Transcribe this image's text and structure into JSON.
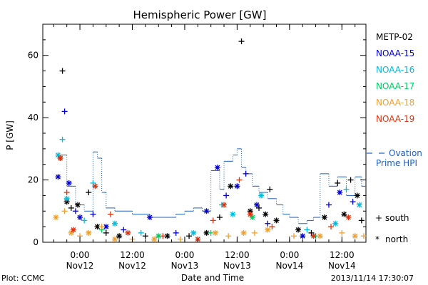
{
  "chart_data": {
    "type": "scatter",
    "title": "Hemispheric Power [GW]",
    "ylabel": "P [GW]",
    "xlabel": "Date and Time",
    "ylim": [
      0,
      70
    ],
    "xlim": [
      "2013-11-11 15:30",
      "2013-11-14 17:30"
    ],
    "y_ticks": [
      0,
      20,
      40,
      60
    ],
    "x_ticks": [
      {
        "time": "2013-11-12 00:00",
        "label1": "0:00",
        "label2": "Nov12"
      },
      {
        "time": "2013-11-12 12:00",
        "label1": "12:00",
        "label2": "Nov12"
      },
      {
        "time": "2013-11-13 00:00",
        "label1": "0:00",
        "label2": "Nov13"
      },
      {
        "time": "2013-11-13 12:00",
        "label1": "12:00",
        "label2": "Nov13"
      },
      {
        "time": "2013-11-14 00:00",
        "label1": "0:00",
        "label2": "Nov14"
      },
      {
        "time": "2013-11-14 12:00",
        "label1": "12:00",
        "label2": "Nov14"
      }
    ],
    "grid": false,
    "legend_position": "right",
    "markers": {
      "south": "+",
      "north": "*"
    },
    "marker_legend": [
      {
        "label": "south",
        "symbol": "+"
      },
      {
        "label": "north",
        "symbol": "*"
      }
    ],
    "series": [
      {
        "name": "METP-02",
        "color": "#000000",
        "points": [
          {
            "x": "2013-11-11 19:30",
            "y": 27,
            "hemi": "north"
          },
          {
            "x": "2013-11-11 20:00",
            "y": 55,
            "hemi": "south"
          },
          {
            "x": "2013-11-11 21:00",
            "y": 13,
            "hemi": "north"
          },
          {
            "x": "2013-11-11 22:00",
            "y": 11,
            "hemi": "south"
          },
          {
            "x": "2013-11-11 23:30",
            "y": 12,
            "hemi": "north"
          },
          {
            "x": "2013-11-12 02:00",
            "y": 16,
            "hemi": "south"
          },
          {
            "x": "2013-11-12 04:00",
            "y": 5,
            "hemi": "north"
          },
          {
            "x": "2013-11-12 06:00",
            "y": 3,
            "hemi": "south"
          },
          {
            "x": "2013-11-12 09:00",
            "y": 2,
            "hemi": "north"
          },
          {
            "x": "2013-11-12 15:00",
            "y": 2,
            "hemi": "south"
          },
          {
            "x": "2013-11-12 20:00",
            "y": 2,
            "hemi": "north"
          },
          {
            "x": "2013-11-13 01:00",
            "y": 2,
            "hemi": "south"
          },
          {
            "x": "2013-11-13 05:00",
            "y": 3,
            "hemi": "north"
          },
          {
            "x": "2013-11-13 08:00",
            "y": 8,
            "hemi": "south"
          },
          {
            "x": "2013-11-13 10:30",
            "y": 18,
            "hemi": "north"
          },
          {
            "x": "2013-11-13 13:00",
            "y": 64.5,
            "hemi": "south"
          },
          {
            "x": "2013-11-13 15:00",
            "y": 10,
            "hemi": "north"
          },
          {
            "x": "2013-11-13 17:00",
            "y": 11,
            "hemi": "south"
          },
          {
            "x": "2013-11-13 18:30",
            "y": 9,
            "hemi": "north"
          },
          {
            "x": "2013-11-13 19:30",
            "y": 17,
            "hemi": "south"
          },
          {
            "x": "2013-11-13 21:00",
            "y": 7,
            "hemi": "north"
          },
          {
            "x": "2013-11-14 02:00",
            "y": 4,
            "hemi": "north"
          },
          {
            "x": "2013-11-14 05:00",
            "y": 3,
            "hemi": "south"
          },
          {
            "x": "2013-11-14 08:00",
            "y": 8,
            "hemi": "north"
          },
          {
            "x": "2013-11-14 11:00",
            "y": 19,
            "hemi": "south"
          },
          {
            "x": "2013-11-14 12:30",
            "y": 9,
            "hemi": "north"
          },
          {
            "x": "2013-11-14 14:00",
            "y": 20,
            "hemi": "south"
          },
          {
            "x": "2013-11-14 15:30",
            "y": 15,
            "hemi": "north"
          },
          {
            "x": "2013-11-14 16:30",
            "y": 7,
            "hemi": "south"
          }
        ]
      },
      {
        "name": "NOAA-15",
        "color": "#0000cc",
        "points": [
          {
            "x": "2013-11-11 19:00",
            "y": 21,
            "hemi": "north"
          },
          {
            "x": "2013-11-11 20:30",
            "y": 42,
            "hemi": "south"
          },
          {
            "x": "2013-11-11 21:30",
            "y": 19,
            "hemi": "north"
          },
          {
            "x": "2013-11-11 23:00",
            "y": 10,
            "hemi": "south"
          },
          {
            "x": "2013-11-12 00:00",
            "y": 8,
            "hemi": "north"
          },
          {
            "x": "2013-11-12 03:00",
            "y": 9,
            "hemi": "south"
          },
          {
            "x": "2013-11-12 06:00",
            "y": 5,
            "hemi": "north"
          },
          {
            "x": "2013-11-12 10:00",
            "y": 4,
            "hemi": "south"
          },
          {
            "x": "2013-11-12 16:00",
            "y": 8,
            "hemi": "north"
          },
          {
            "x": "2013-11-12 22:00",
            "y": 3,
            "hemi": "south"
          },
          {
            "x": "2013-11-13 05:00",
            "y": 10,
            "hemi": "north"
          },
          {
            "x": "2013-11-13 07:30",
            "y": 24,
            "hemi": "north"
          },
          {
            "x": "2013-11-13 09:30",
            "y": 15,
            "hemi": "south"
          },
          {
            "x": "2013-11-13 12:00",
            "y": 18,
            "hemi": "north"
          },
          {
            "x": "2013-11-13 14:00",
            "y": 22,
            "hemi": "south"
          },
          {
            "x": "2013-11-13 16:30",
            "y": 12,
            "hemi": "north"
          },
          {
            "x": "2013-11-13 19:00",
            "y": 6,
            "hemi": "south"
          },
          {
            "x": "2013-11-14 03:00",
            "y": 2,
            "hemi": "north"
          },
          {
            "x": "2013-11-14 09:00",
            "y": 12,
            "hemi": "south"
          },
          {
            "x": "2013-11-14 11:30",
            "y": 16,
            "hemi": "north"
          },
          {
            "x": "2013-11-14 14:30",
            "y": 13,
            "hemi": "south"
          }
        ]
      },
      {
        "name": "NOAA-16",
        "color": "#00bbdd",
        "points": [
          {
            "x": "2013-11-11 19:00",
            "y": 28,
            "hemi": "north"
          },
          {
            "x": "2013-11-11 20:00",
            "y": 33,
            "hemi": "south"
          },
          {
            "x": "2013-11-11 21:00",
            "y": 14,
            "hemi": "north"
          },
          {
            "x": "2013-11-12 01:00",
            "y": 7,
            "hemi": "south"
          },
          {
            "x": "2013-11-12 03:00",
            "y": 19,
            "hemi": "south"
          },
          {
            "x": "2013-11-12 08:00",
            "y": 6,
            "hemi": "north"
          },
          {
            "x": "2013-11-12 14:00",
            "y": 3,
            "hemi": "south"
          },
          {
            "x": "2013-11-13 02:00",
            "y": 3,
            "hemi": "north"
          },
          {
            "x": "2013-11-13 08:30",
            "y": 12,
            "hemi": "south"
          },
          {
            "x": "2013-11-13 11:00",
            "y": 9,
            "hemi": "north"
          },
          {
            "x": "2013-11-13 17:30",
            "y": 15,
            "hemi": "north"
          },
          {
            "x": "2013-11-14 04:00",
            "y": 4,
            "hemi": "south"
          },
          {
            "x": "2013-11-14 10:30",
            "y": 6,
            "hemi": "north"
          },
          {
            "x": "2013-11-14 13:00",
            "y": 17,
            "hemi": "south"
          },
          {
            "x": "2013-11-14 16:00",
            "y": 12,
            "hemi": "north"
          }
        ]
      },
      {
        "name": "NOAA-17",
        "color": "#00cc66",
        "points": [
          {
            "x": "2013-11-12 05:00",
            "y": 4,
            "hemi": "south"
          },
          {
            "x": "2013-11-12 18:00",
            "y": 2,
            "hemi": "north"
          },
          {
            "x": "2013-11-13 06:00",
            "y": 3,
            "hemi": "south"
          },
          {
            "x": "2013-11-13 15:30",
            "y": 8,
            "hemi": "north"
          },
          {
            "x": "2013-11-14 06:00",
            "y": 2,
            "hemi": "south"
          }
        ]
      },
      {
        "name": "NOAA-18",
        "color": "#f0a030",
        "points": [
          {
            "x": "2013-11-11 18:30",
            "y": 8,
            "hemi": "north"
          },
          {
            "x": "2013-11-11 20:30",
            "y": 10,
            "hemi": "south"
          },
          {
            "x": "2013-11-11 22:00",
            "y": 3,
            "hemi": "north"
          },
          {
            "x": "2013-11-12 00:00",
            "y": 2,
            "hemi": "south"
          },
          {
            "x": "2013-11-12 02:00",
            "y": 3,
            "hemi": "north"
          },
          {
            "x": "2013-11-12 05:00",
            "y": 5,
            "hemi": "south"
          },
          {
            "x": "2013-11-12 08:00",
            "y": 1,
            "hemi": "north"
          },
          {
            "x": "2013-11-12 12:00",
            "y": 1,
            "hemi": "south"
          },
          {
            "x": "2013-11-12 17:00",
            "y": 1,
            "hemi": "north"
          },
          {
            "x": "2013-11-12 23:00",
            "y": 1,
            "hemi": "south"
          },
          {
            "x": "2013-11-13 07:00",
            "y": 3,
            "hemi": "north"
          },
          {
            "x": "2013-11-13 10:00",
            "y": 2,
            "hemi": "south"
          },
          {
            "x": "2013-11-13 13:30",
            "y": 3,
            "hemi": "north"
          },
          {
            "x": "2013-11-13 16:00",
            "y": 3,
            "hemi": "south"
          },
          {
            "x": "2013-11-13 19:00",
            "y": 4,
            "hemi": "north"
          },
          {
            "x": "2013-11-14 01:00",
            "y": 2,
            "hemi": "south"
          },
          {
            "x": "2013-11-14 07:00",
            "y": 2,
            "hemi": "north"
          },
          {
            "x": "2013-11-14 12:00",
            "y": 3,
            "hemi": "south"
          },
          {
            "x": "2013-11-14 15:00",
            "y": 2,
            "hemi": "north"
          },
          {
            "x": "2013-11-14 17:00",
            "y": 2,
            "hemi": "south"
          }
        ]
      },
      {
        "name": "NOAA-19",
        "color": "#dd3311",
        "points": [
          {
            "x": "2013-11-11 19:30",
            "y": 27,
            "hemi": "north"
          },
          {
            "x": "2013-11-11 21:00",
            "y": 16,
            "hemi": "south"
          },
          {
            "x": "2013-11-11 22:30",
            "y": 4,
            "hemi": "north"
          },
          {
            "x": "2013-11-12 03:30",
            "y": 18,
            "hemi": "north"
          },
          {
            "x": "2013-11-12 07:00",
            "y": 9,
            "hemi": "south"
          },
          {
            "x": "2013-11-12 11:00",
            "y": 3,
            "hemi": "north"
          },
          {
            "x": "2013-11-12 19:00",
            "y": 2,
            "hemi": "south"
          },
          {
            "x": "2013-11-13 03:00",
            "y": 1,
            "hemi": "north"
          },
          {
            "x": "2013-11-13 06:30",
            "y": 7,
            "hemi": "south"
          },
          {
            "x": "2013-11-13 09:00",
            "y": 12,
            "hemi": "north"
          },
          {
            "x": "2013-11-13 12:30",
            "y": 20,
            "hemi": "south"
          },
          {
            "x": "2013-11-13 15:00",
            "y": 9,
            "hemi": "north"
          },
          {
            "x": "2013-11-13 20:00",
            "y": 5,
            "hemi": "south"
          },
          {
            "x": "2013-11-14 05:30",
            "y": 2,
            "hemi": "north"
          },
          {
            "x": "2013-11-14 09:30",
            "y": 5,
            "hemi": "south"
          },
          {
            "x": "2013-11-14 13:30",
            "y": 8,
            "hemi": "north"
          }
        ]
      }
    ],
    "ovation": {
      "label_line1": "Ovation",
      "label_line2": "Prime HPI",
      "color": "#1f5fbf",
      "steps": [
        {
          "x": "2013-11-11 19:00",
          "y": 28
        },
        {
          "x": "2013-11-11 21:00",
          "y": 18
        },
        {
          "x": "2013-11-11 23:00",
          "y": 12
        },
        {
          "x": "2013-11-12 01:00",
          "y": 10
        },
        {
          "x": "2013-11-12 03:00",
          "y": 29
        },
        {
          "x": "2013-11-12 04:00",
          "y": 27
        },
        {
          "x": "2013-11-12 05:00",
          "y": 16
        },
        {
          "x": "2013-11-12 06:00",
          "y": 11
        },
        {
          "x": "2013-11-12 08:00",
          "y": 10
        },
        {
          "x": "2013-11-12 12:00",
          "y": 9
        },
        {
          "x": "2013-11-12 16:00",
          "y": 8
        },
        {
          "x": "2013-11-12 20:00",
          "y": 8
        },
        {
          "x": "2013-11-12 22:00",
          "y": 9
        },
        {
          "x": "2013-11-13 00:00",
          "y": 10
        },
        {
          "x": "2013-11-13 02:00",
          "y": 11
        },
        {
          "x": "2013-11-13 04:00",
          "y": 10
        },
        {
          "x": "2013-11-13 06:00",
          "y": 23
        },
        {
          "x": "2013-11-13 08:00",
          "y": 17
        },
        {
          "x": "2013-11-13 09:00",
          "y": 26
        },
        {
          "x": "2013-11-13 11:00",
          "y": 28
        },
        {
          "x": "2013-11-13 12:00",
          "y": 30
        },
        {
          "x": "2013-11-13 13:00",
          "y": 24
        },
        {
          "x": "2013-11-13 14:00",
          "y": 22
        },
        {
          "x": "2013-11-13 15:30",
          "y": 18
        },
        {
          "x": "2013-11-13 17:00",
          "y": 16
        },
        {
          "x": "2013-11-13 19:00",
          "y": 14
        },
        {
          "x": "2013-11-13 21:00",
          "y": 12
        },
        {
          "x": "2013-11-13 22:30",
          "y": 9
        },
        {
          "x": "2013-11-14 00:00",
          "y": 8
        },
        {
          "x": "2013-11-14 02:00",
          "y": 6
        },
        {
          "x": "2013-11-14 04:00",
          "y": 7
        },
        {
          "x": "2013-11-14 05:30",
          "y": 8
        },
        {
          "x": "2013-11-14 07:00",
          "y": 22
        },
        {
          "x": "2013-11-14 09:00",
          "y": 18
        },
        {
          "x": "2013-11-14 11:00",
          "y": 21
        },
        {
          "x": "2013-11-14 13:00",
          "y": 15
        },
        {
          "x": "2013-11-14 15:00",
          "y": 21
        },
        {
          "x": "2013-11-14 16:30",
          "y": 18
        },
        {
          "x": "2013-11-14 17:30",
          "y": 18
        }
      ]
    }
  },
  "footer": {
    "left": "Plot: CCMC",
    "right": "2013/11/14 17:30:07"
  }
}
